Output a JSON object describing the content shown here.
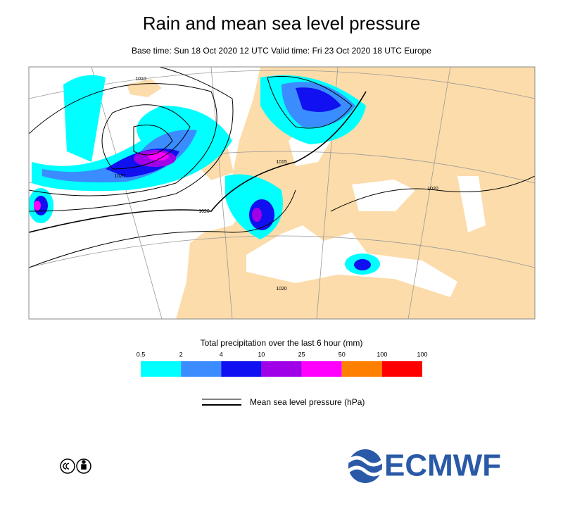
{
  "header": {
    "title": "Rain and mean sea level pressure",
    "subtitle": "Base time: Sun 18 Oct 2020 12 UTC Valid time: Fri 23 Oct 2020 18 UTC Europe"
  },
  "map": {
    "isobar_labels": [
      "1010",
      "1020",
      "1015",
      "1020",
      "1020",
      "1020"
    ]
  },
  "legend": {
    "title": "Total precipitation over the last 6 hour (mm)",
    "bounds": [
      0.5,
      2,
      4,
      10,
      25,
      50,
      100,
      100
    ],
    "colors": [
      "#00ffff",
      "#3a8cff",
      "#1010f0",
      "#a000e8",
      "#ff00ff",
      "#ff8000",
      "#ff0000"
    ]
  },
  "pressure_legend": {
    "label": "Mean sea level pressure (hPa)"
  },
  "footer": {
    "logo": "ECMWF"
  }
}
